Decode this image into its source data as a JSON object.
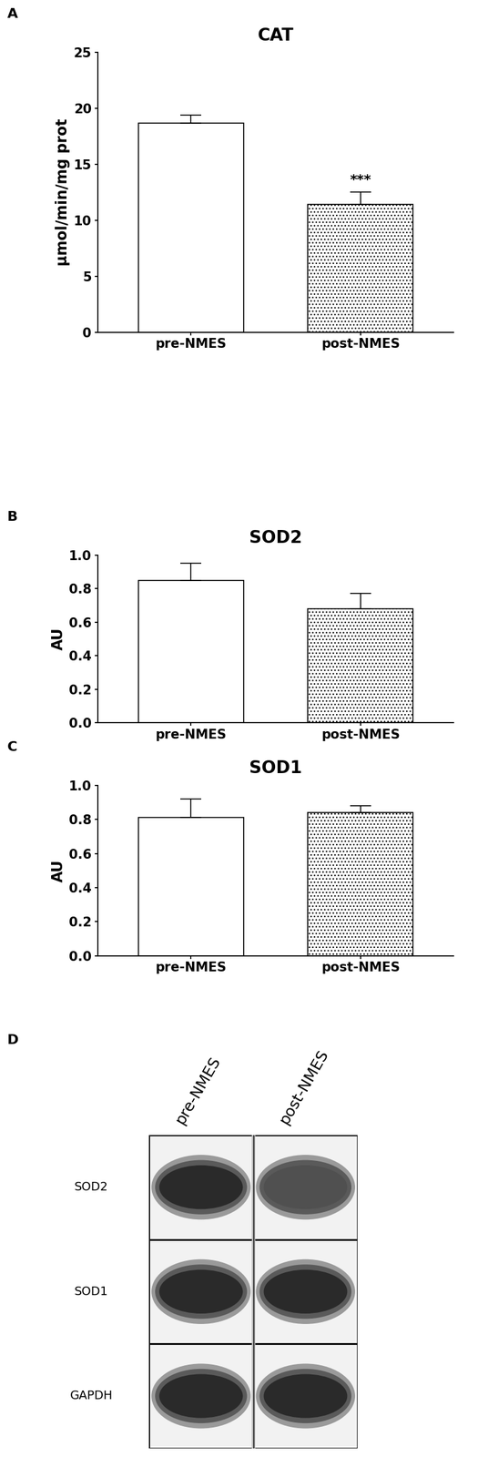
{
  "chart_data": [
    {
      "type": "bar",
      "panel": "A",
      "title": "CAT",
      "y_label": "μmol/min/mg prot",
      "categories": [
        "pre-NMES",
        "post-NMES"
      ],
      "values": [
        18.7,
        11.4
      ],
      "error": [
        0.7,
        1.1
      ],
      "colors": [
        "#ffffff",
        "#ffffff"
      ],
      "ylim": [
        0,
        25
      ],
      "yticks": [
        0,
        5,
        10,
        15,
        20,
        25
      ],
      "grid": false,
      "annotations": [
        {
          "category": "post-NMES",
          "text": "***"
        }
      ]
    },
    {
      "type": "bar",
      "panel": "B",
      "title": "SOD2",
      "y_label": "AU",
      "categories": [
        "pre-NMES",
        "post-NMES"
      ],
      "values": [
        0.85,
        0.68
      ],
      "error": [
        0.1,
        0.09
      ],
      "colors": [
        "#ffffff",
        "#ffffff"
      ],
      "ylim": [
        0,
        1.0
      ],
      "yticks": [
        {
          "value": 0,
          "label": "0.0"
        },
        {
          "value": 0.2,
          "label": "0.2"
        },
        {
          "value": 0.4,
          "label": "0.4"
        },
        {
          "value": 0.6,
          "label": "0.6"
        },
        {
          "value": 0.8,
          "label": "0.8"
        },
        {
          "value": 1.0,
          "label": "1.0"
        }
      ],
      "grid": false
    },
    {
      "type": "bar",
      "panel": "C",
      "title": "SOD1",
      "y_label": "AU",
      "categories": [
        "pre-NMES",
        "post-NMES"
      ],
      "values": [
        0.81,
        0.84
      ],
      "error": [
        0.11,
        0.04
      ],
      "colors": [
        "#ffffff",
        "#ffffff"
      ],
      "ylim": [
        0,
        1.0
      ],
      "yticks": [
        {
          "value": 0,
          "label": "0.0"
        },
        {
          "value": 0.2,
          "label": "0.2"
        },
        {
          "value": 0.4,
          "label": "0.4"
        },
        {
          "value": 0.6,
          "label": "0.6"
        },
        {
          "value": 0.8,
          "label": "0.8"
        },
        {
          "value": 1.0,
          "label": "1.0"
        }
      ],
      "grid": false
    }
  ],
  "blot": {
    "panel": "D",
    "lanes": [
      "pre-NMES",
      "post-NMES"
    ],
    "rows": [
      "SOD2",
      "SOD1",
      "GAPDH"
    ]
  }
}
